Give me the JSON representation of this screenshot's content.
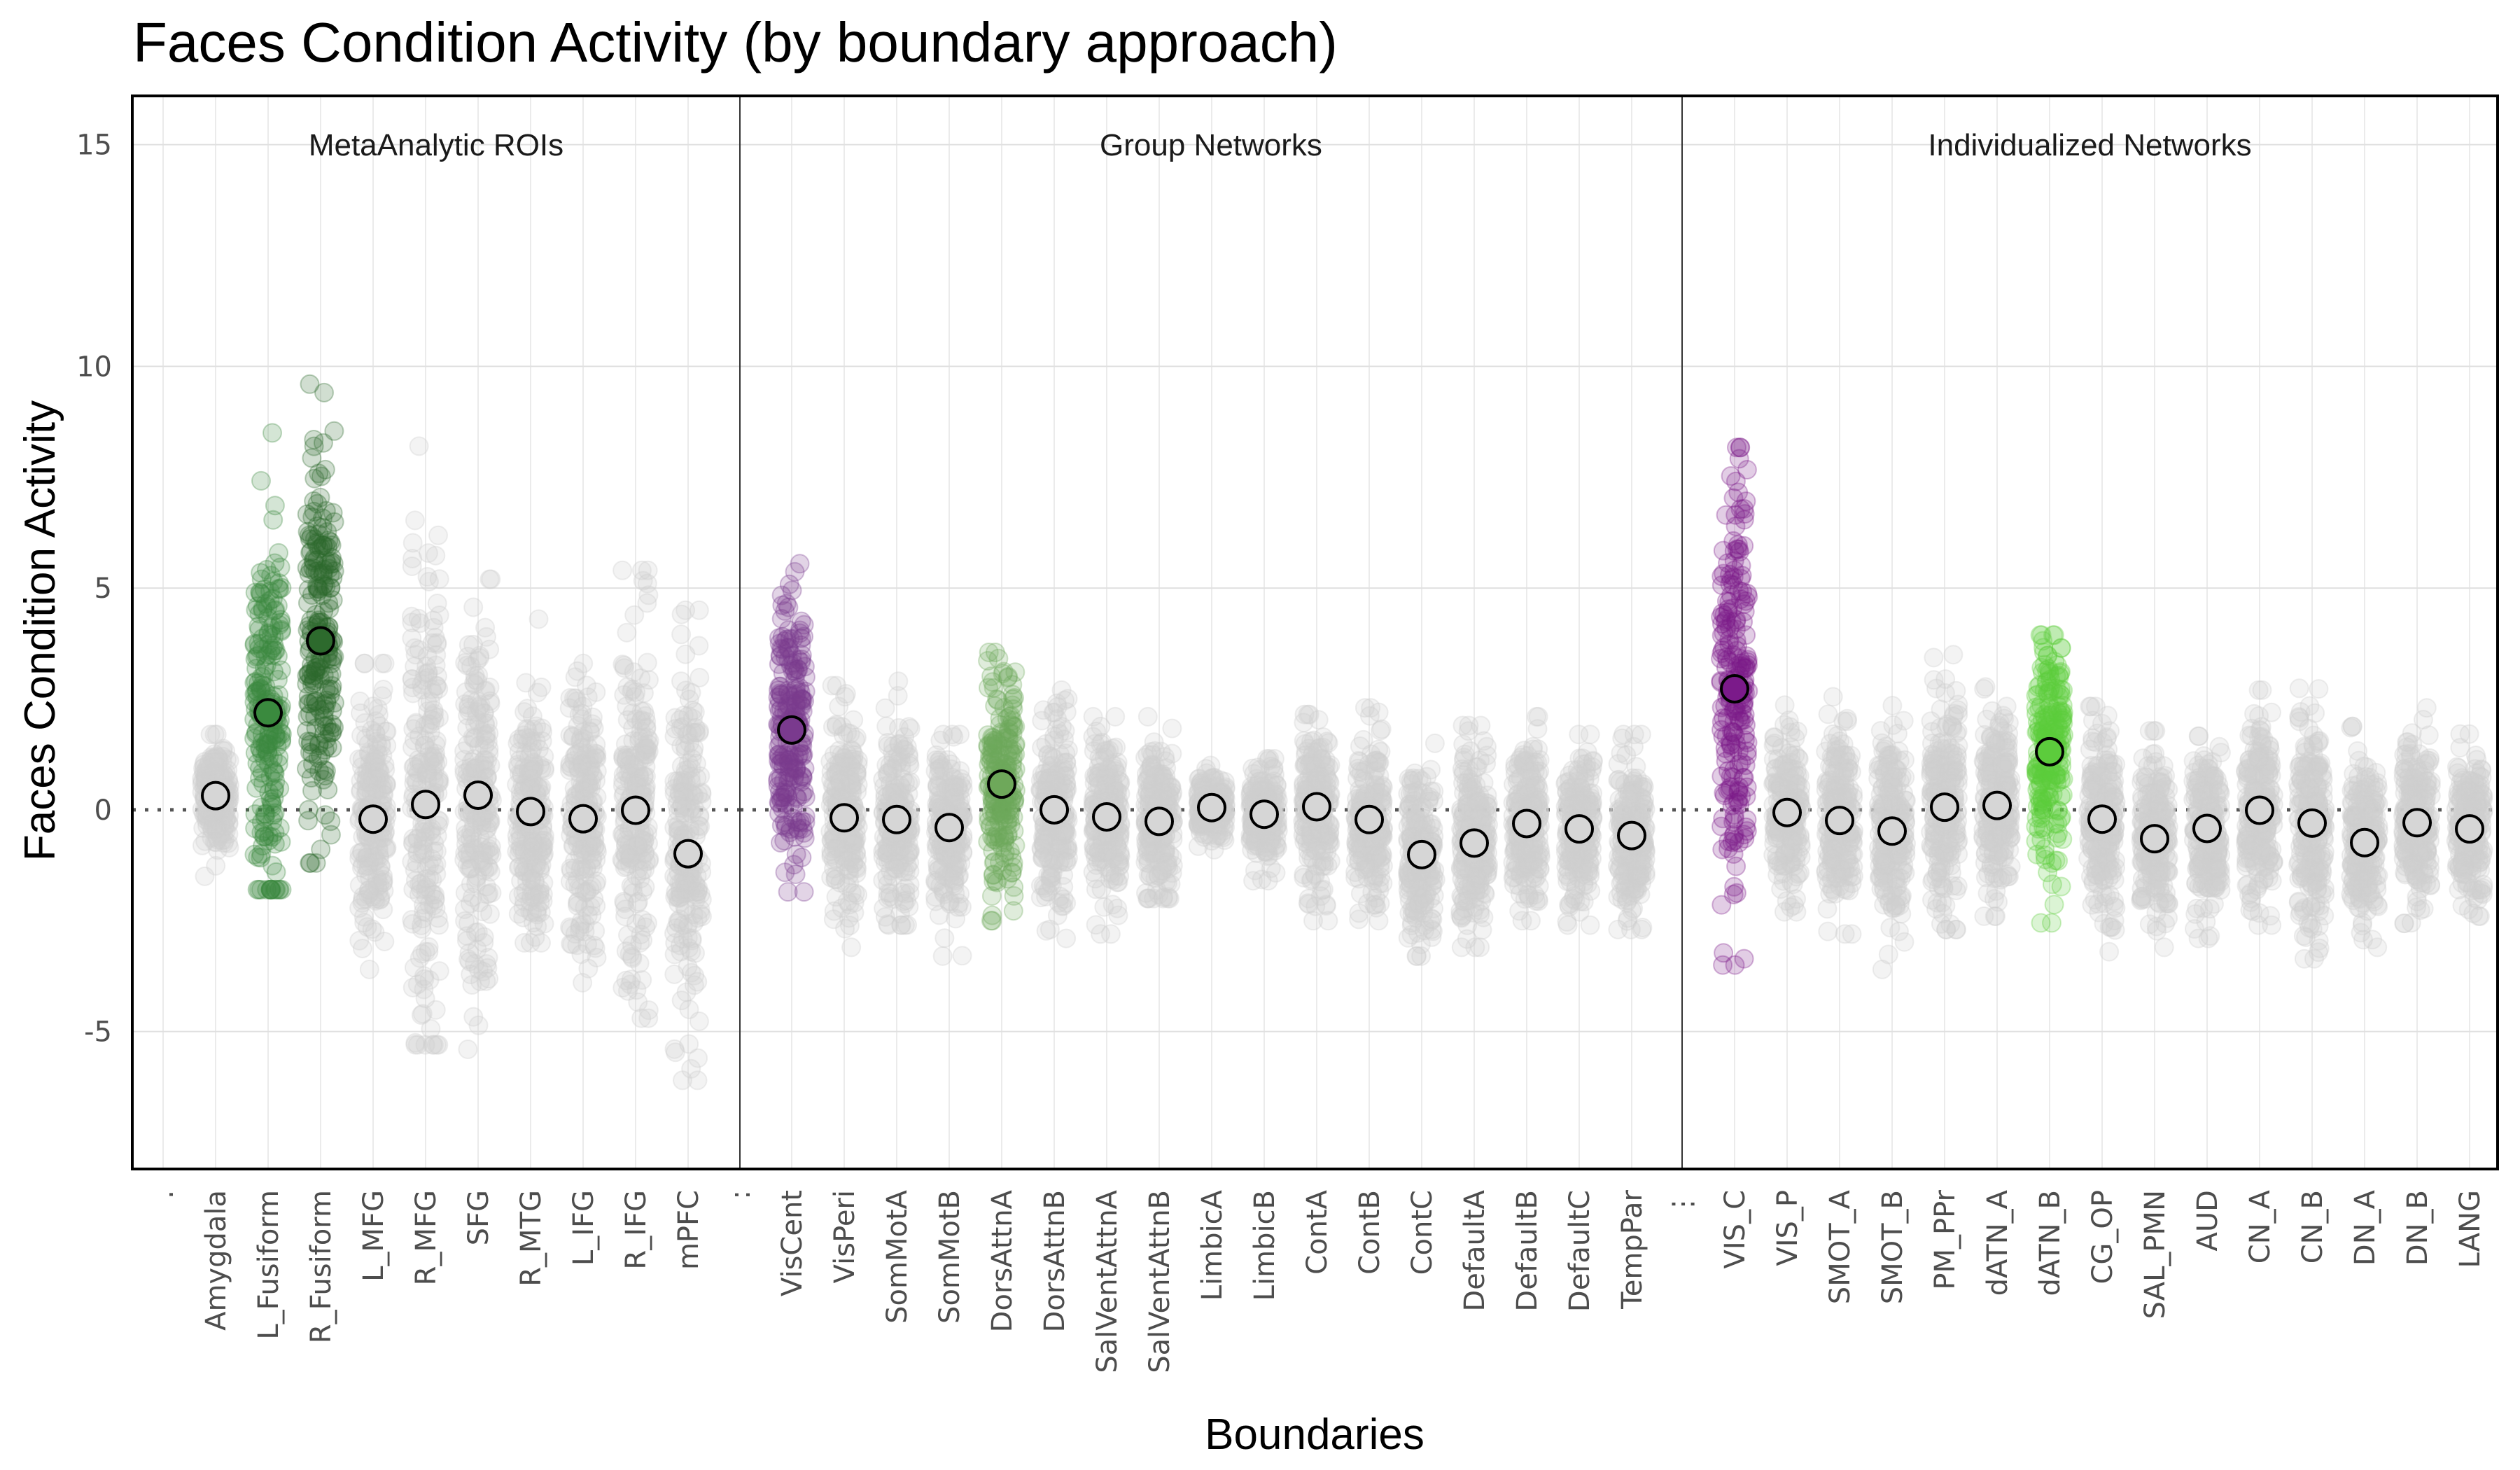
{
  "chart_data": {
    "type": "scatter",
    "title": "Faces Condition Activity (by boundary approach)",
    "xlabel": "Boundaries",
    "ylabel": "Faces Condition Activity",
    "ylim": [
      -8.1,
      16.1
    ],
    "yticks": [
      -5,
      0,
      5,
      10,
      15
    ],
    "reference_line": {
      "y": 0,
      "style": "dotted"
    },
    "grid": true,
    "neutral_color": "#cfcfcf",
    "panels": [
      {
        "label": "MetaAnalytic ROIs",
        "spacer_label": ".",
        "categories": [
          {
            "name": "Amygdala",
            "mean": 0.32,
            "min": -1.5,
            "max": 1.7,
            "color": null
          },
          {
            "name": "L_Fusiform",
            "mean": 2.19,
            "min": -1.8,
            "max": 8.5,
            "color": "#3a8a3e"
          },
          {
            "name": "R_Fusiform",
            "mean": 3.81,
            "min": -1.2,
            "max": 9.6,
            "color": "#2d6a2d"
          },
          {
            "name": "L_MFG",
            "mean": -0.21,
            "min": -3.6,
            "max": 3.3,
            "color": null
          },
          {
            "name": "R_MFG",
            "mean": 0.12,
            "min": -5.3,
            "max": 8.2,
            "color": null
          },
          {
            "name": "SFG",
            "mean": 0.33,
            "min": -5.4,
            "max": 5.2,
            "color": null
          },
          {
            "name": "R_MTG",
            "mean": -0.04,
            "min": -3.0,
            "max": 4.3,
            "color": null
          },
          {
            "name": "L_IFG",
            "mean": -0.2,
            "min": -3.9,
            "max": 3.3,
            "color": null
          },
          {
            "name": "R_IFG",
            "mean": -0.01,
            "min": -4.7,
            "max": 5.4,
            "color": null
          },
          {
            "name": "mPFC",
            "mean": -0.99,
            "min": -6.1,
            "max": 4.5,
            "color": null
          }
        ]
      },
      {
        "label": "Group Networks",
        "spacer_label": ":",
        "categories": [
          {
            "name": "VisCent",
            "mean": 1.8,
            "min": -1.85,
            "max": 5.55,
            "color": "#7a3a8e"
          },
          {
            "name": "VisPeri",
            "mean": -0.18,
            "min": -3.1,
            "max": 2.8,
            "color": null
          },
          {
            "name": "SomMotA",
            "mean": -0.22,
            "min": -2.6,
            "max": 2.9,
            "color": null
          },
          {
            "name": "SomMotB",
            "mean": -0.4,
            "min": -3.3,
            "max": 1.7,
            "color": null
          },
          {
            "name": "DorsAttnA",
            "mean": 0.58,
            "min": -2.5,
            "max": 3.55,
            "color": "#6ea85a"
          },
          {
            "name": "DorsAttnB",
            "mean": 0.0,
            "min": -2.9,
            "max": 2.7,
            "color": null
          },
          {
            "name": "SalVentAttnA",
            "mean": -0.16,
            "min": -2.8,
            "max": 2.1,
            "color": null
          },
          {
            "name": "SalVentAttnB",
            "mean": -0.26,
            "min": -2.0,
            "max": 2.1,
            "color": null
          },
          {
            "name": "LimbicA",
            "mean": 0.05,
            "min": -0.9,
            "max": 1.0,
            "color": null
          },
          {
            "name": "LimbicB",
            "mean": -0.1,
            "min": -1.6,
            "max": 1.15,
            "color": null
          },
          {
            "name": "ContA",
            "mean": 0.07,
            "min": -2.5,
            "max": 2.15,
            "color": null
          },
          {
            "name": "ContB",
            "mean": -0.22,
            "min": -2.5,
            "max": 2.3,
            "color": null
          },
          {
            "name": "ContC",
            "mean": -1.01,
            "min": -3.3,
            "max": 1.5,
            "color": null
          },
          {
            "name": "DefaultA",
            "mean": -0.75,
            "min": -3.1,
            "max": 1.9,
            "color": null
          },
          {
            "name": "DefaultB",
            "mean": -0.31,
            "min": -2.5,
            "max": 2.1,
            "color": null
          },
          {
            "name": "DefaultC",
            "mean": -0.43,
            "min": -2.6,
            "max": 1.7,
            "color": null
          },
          {
            "name": "TempPar",
            "mean": -0.58,
            "min": -2.7,
            "max": 1.7,
            "color": null
          }
        ]
      },
      {
        "label": "Individualized Networks",
        "spacer_label": "⋮",
        "categories": [
          {
            "name": "VIS_C",
            "mean": 2.73,
            "min": -3.5,
            "max": 8.17,
            "color": "#7b1a8a"
          },
          {
            "name": "VIS_P",
            "mean": -0.06,
            "min": -2.3,
            "max": 2.36,
            "color": null
          },
          {
            "name": "SMOT_A",
            "mean": -0.24,
            "min": -2.8,
            "max": 2.55,
            "color": null
          },
          {
            "name": "SMOT_B",
            "mean": -0.48,
            "min": -3.6,
            "max": 2.35,
            "color": null
          },
          {
            "name": "PM_PPr",
            "mean": 0.06,
            "min": -2.7,
            "max": 3.5,
            "color": null
          },
          {
            "name": "dATN_A",
            "mean": 0.1,
            "min": -2.4,
            "max": 2.77,
            "color": null
          },
          {
            "name": "dATN_B",
            "mean": 1.31,
            "min": -2.55,
            "max": 3.94,
            "color": "#5ccc3c"
          },
          {
            "name": "CG_OP",
            "mean": -0.21,
            "min": -3.2,
            "max": 2.33,
            "color": null
          },
          {
            "name": "SAL_PMN",
            "mean": -0.65,
            "min": -3.1,
            "max": 1.78,
            "color": null
          },
          {
            "name": "AUD",
            "mean": -0.42,
            "min": -2.9,
            "max": 1.66,
            "color": null
          },
          {
            "name": "CN_A",
            "mean": -0.01,
            "min": -2.6,
            "max": 2.7,
            "color": null
          },
          {
            "name": "CN_B",
            "mean": -0.3,
            "min": -3.36,
            "max": 2.74,
            "color": null
          },
          {
            "name": "DN_A",
            "mean": -0.74,
            "min": -3.1,
            "max": 1.88,
            "color": null
          },
          {
            "name": "DN_B",
            "mean": -0.29,
            "min": -2.56,
            "max": 2.3,
            "color": null
          },
          {
            "name": "LANG",
            "mean": -0.43,
            "min": -2.4,
            "max": 1.71,
            "color": null
          }
        ]
      }
    ]
  }
}
